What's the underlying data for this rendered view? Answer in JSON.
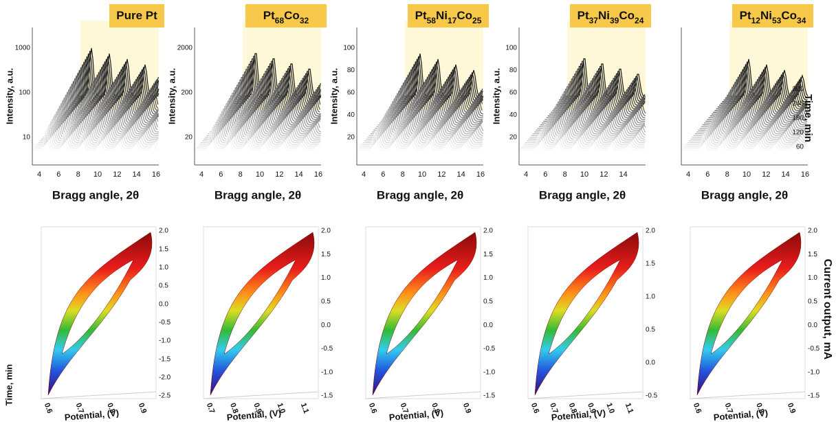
{
  "top_panels": [
    {
      "title": [
        "Pure Pt"
      ],
      "y_label": "Intensity, a.u.",
      "y_ticks": [
        "1000",
        "100",
        "10"
      ],
      "x_ticks": [
        "4",
        "6",
        "8",
        "10",
        "12",
        "14",
        "16"
      ],
      "x_label": "Bragg angle, 2θ"
    },
    {
      "title": [
        "Pt",
        "68",
        "Co",
        "32"
      ],
      "y_label": "Intensity, a.u.",
      "y_ticks": [
        "2000",
        "200",
        "20"
      ],
      "x_ticks": [
        "4",
        "6",
        "8",
        "10",
        "12",
        "14",
        "16"
      ],
      "x_label": "Bragg angle, 2θ"
    },
    {
      "title": [
        "Pt",
        "58",
        "Ni",
        "17",
        "Co",
        "25"
      ],
      "y_label": "Intensity, a.u.",
      "y_ticks": [
        "100",
        "80",
        "60",
        "40",
        "20"
      ],
      "x_ticks": [
        "4",
        "6",
        "8",
        "10",
        "12",
        "14",
        "16"
      ],
      "x_label": "Bragg angle, 2θ"
    },
    {
      "title": [
        "Pt",
        "37",
        "Ni",
        "39",
        "Co",
        "24"
      ],
      "y_label": "Intensity, a.u.",
      "y_ticks": [
        "100",
        "80",
        "60",
        "40",
        "20"
      ],
      "x_ticks": [
        "4",
        "6",
        "8",
        "10",
        "12",
        "14"
      ],
      "x_label": "Bragg angle, 2θ"
    },
    {
      "title": [
        "Pt",
        "12",
        "Ni",
        "53",
        "Co",
        "34"
      ],
      "y_label": "",
      "y_ticks": [],
      "x_ticks": [
        "4",
        "6",
        "8",
        "10",
        "12",
        "14",
        "16"
      ],
      "x_label": "Bragg angle, 2θ"
    }
  ],
  "time_axis": {
    "label": "Time, min",
    "ticks": [
      "300",
      "240",
      "180",
      "120",
      "60"
    ]
  },
  "bottom_panels": [
    {
      "x_ticks": [
        "0.6",
        "0.7",
        "0.8",
        "0.9"
      ],
      "z_ticks": [
        "2.0",
        "1.5",
        "1.0",
        "0.5",
        "0.0",
        "-0.5",
        "-1.0",
        "-1.5",
        "-2.0",
        "-2.5"
      ],
      "x_label": "Potential, (V)"
    },
    {
      "x_ticks": [
        "0.7",
        "0.8",
        "0.9",
        "1.0",
        "1.1"
      ],
      "z_ticks": [
        "2.0",
        "1.5",
        "1.0",
        "0.5",
        "0.0",
        "-0.5",
        "-1.0",
        "-1.5"
      ],
      "x_label": "Potential, (V)"
    },
    {
      "x_ticks": [
        "0.6",
        "0.7",
        "0.8",
        "0.9"
      ],
      "z_ticks": [
        "2.0",
        "1.5",
        "1.0",
        "0.5",
        "0.0",
        "-0.5",
        "-1.0",
        "-1.5"
      ],
      "x_label": "Potential, (V)"
    },
    {
      "x_ticks": [
        "0.6",
        "0.7",
        "0.8",
        "0.9",
        "1.0",
        "1.1"
      ],
      "z_ticks": [
        "2.0",
        "1.5",
        "1.0",
        "0.5",
        "0.0",
        "-0.5"
      ],
      "x_label": "Potential, (V)"
    },
    {
      "x_ticks": [
        "0.6",
        "0.7",
        "0.8",
        "0.9"
      ],
      "z_ticks": [
        "2.0",
        "1.5",
        "1.0",
        "0.5",
        "0.0",
        "-0.5",
        "-1.0",
        "-1.5"
      ],
      "x_label": "Potential, (V)"
    }
  ],
  "bottom_left_label": "Time, min",
  "bottom_right_label": "Current output, mA"
}
